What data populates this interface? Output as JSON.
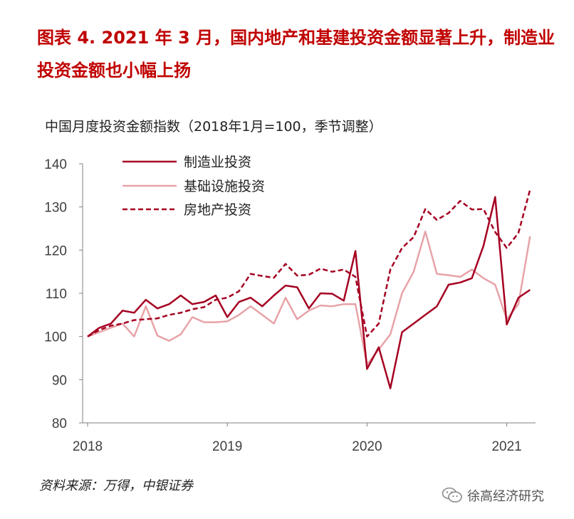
{
  "figure": {
    "title": "图表 4.  2021 年 3 月，国内地产和基建投资金额显著上升，制造业投资金额也小幅上扬",
    "source": "资料来源：万得，中银证券",
    "watermark": "徐高经济研究"
  },
  "chart_data": {
    "type": "line",
    "subtitle": "中国月度投资金额指数（2018年1月=100，季节调整）",
    "xlabel": "",
    "ylabel": "",
    "ylim": [
      80,
      140
    ],
    "yticks": [
      80,
      90,
      100,
      110,
      120,
      130,
      140
    ],
    "xticks": [
      "2018",
      "2019",
      "2020",
      "2021"
    ],
    "x": [
      "2018-01",
      "2018-02",
      "2018-03",
      "2018-04",
      "2018-05",
      "2018-06",
      "2018-07",
      "2018-08",
      "2018-09",
      "2018-10",
      "2018-11",
      "2018-12",
      "2019-01",
      "2019-02",
      "2019-03",
      "2019-04",
      "2019-05",
      "2019-06",
      "2019-07",
      "2019-08",
      "2019-09",
      "2019-10",
      "2019-11",
      "2019-12",
      "2020-01",
      "2020-02",
      "2020-03",
      "2020-04",
      "2020-05",
      "2020-06",
      "2020-07",
      "2020-08",
      "2020-09",
      "2020-10",
      "2020-11",
      "2020-12",
      "2021-01",
      "2021-02",
      "2021-03"
    ],
    "grid": false,
    "legend_position": "top-left",
    "series": [
      {
        "name": "制造业投资",
        "color": "#a50021",
        "style": "solid",
        "values": [
          100,
          102,
          103,
          106,
          105.5,
          108.5,
          106.5,
          107.5,
          109.5,
          107.5,
          108,
          109.5,
          104.5,
          108,
          109,
          107,
          109.5,
          111.8,
          111.4,
          106.5,
          110,
          109.9,
          108.3,
          119.8,
          92.5,
          97.5,
          88,
          101,
          103,
          105,
          107,
          112,
          112.5,
          113.5,
          121,
          132.3,
          102.8,
          109,
          110.8
        ]
      },
      {
        "name": "基础设施投资",
        "color": "#e7a3a8",
        "style": "solid",
        "values": [
          100,
          101,
          102,
          103,
          100,
          107,
          100.2,
          99,
          100.5,
          104.5,
          103.3,
          103.3,
          103.5,
          105,
          107,
          105,
          103,
          109,
          104,
          106,
          107.2,
          107,
          107.5,
          107.5,
          93.5,
          97,
          100.5,
          110,
          115,
          124.3,
          114.5,
          114.2,
          113.8,
          115.5,
          113.5,
          112,
          104,
          107.5,
          123.2
        ]
      },
      {
        "name": "房地产投资",
        "color": "#a50021",
        "style": "dashed",
        "values": [
          100,
          101.5,
          102.5,
          103,
          103.8,
          104,
          104.2,
          105,
          105.5,
          106.3,
          106.8,
          108.5,
          109,
          110.5,
          114.5,
          114,
          113.6,
          116.8,
          114.1,
          114.3,
          115.7,
          115,
          115.5,
          113.8,
          100,
          103,
          115.5,
          120.5,
          123,
          129.5,
          127,
          128.6,
          131.4,
          129.4,
          129.5,
          124.2,
          120.5,
          124,
          134
        ]
      }
    ]
  }
}
